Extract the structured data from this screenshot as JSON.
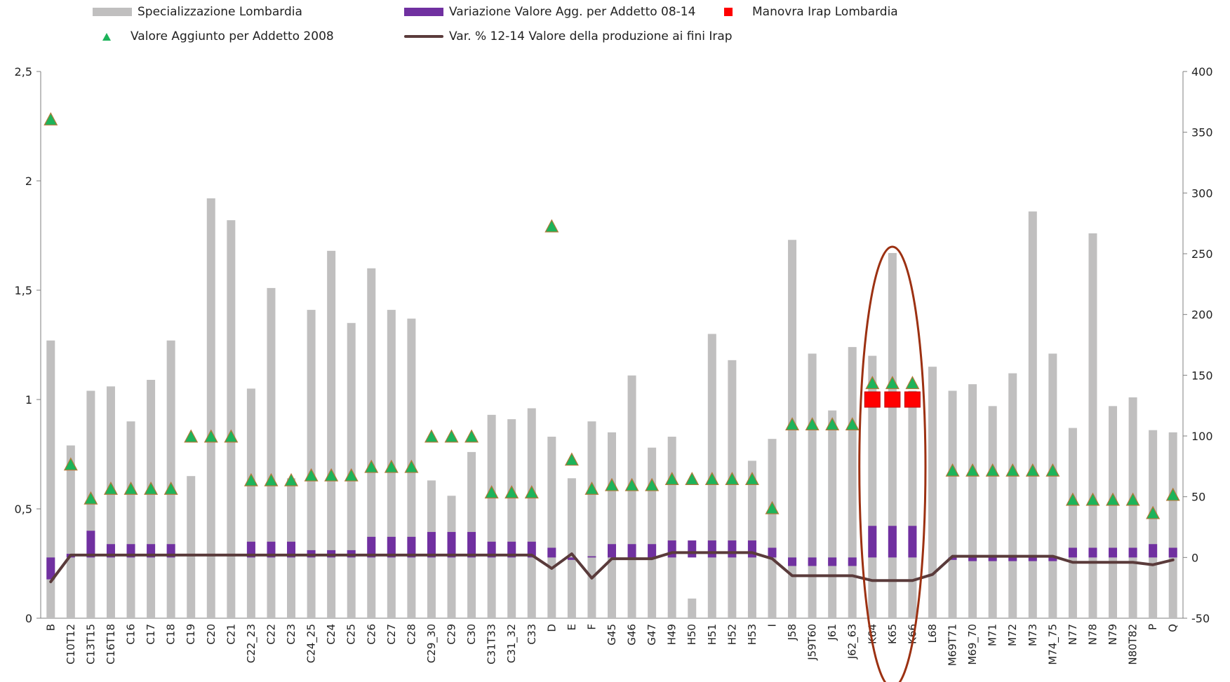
{
  "legend": {
    "specializzazione": "Specializzazione   Lombardia",
    "variazione": "Variazione Valore Agg. per Addetto 08-14",
    "manovra": "Manovra Irap   Lombardia",
    "valore_aggiunto": "Valore Aggiunto per Addetto 2008",
    "var_produzione": "Var. % 12-14 Valore della produzione ai fini Irap"
  },
  "chart_data": {
    "type": "bar",
    "categories": [
      "B",
      "C10T12",
      "C13T15",
      "C16T18",
      "C16",
      "C17",
      "C18",
      "C19",
      "C20",
      "C21",
      "C22_23",
      "C22",
      "C23",
      "C24_25",
      "C24",
      "C25",
      "C26",
      "C27",
      "C28",
      "C29_30",
      "C29",
      "C30",
      "C31T33",
      "C31_32",
      "C33",
      "D",
      "E",
      "F",
      "G45",
      "G46",
      "G47",
      "H49",
      "H50",
      "H51",
      "H52",
      "H53",
      "I",
      "J58",
      "J59T60",
      "J61",
      "J62_63",
      "K64",
      "K65",
      "K66",
      "L68",
      "M69T71",
      "M69_70",
      "M71",
      "M72",
      "M73",
      "M74_75",
      "N77",
      "N78",
      "N79",
      "N80T82",
      "P",
      "Q"
    ],
    "left_axis": {
      "min": 0,
      "max": 2.5,
      "ticks": [
        "0",
        "0,5",
        "1",
        "1,5",
        "2",
        "2,5"
      ],
      "tick_values": [
        0,
        0.5,
        1,
        1.5,
        2,
        2.5
      ]
    },
    "right_axis": {
      "min": -50,
      "max": 400,
      "ticks": [
        "-50",
        "0",
        "50",
        "100",
        "150",
        "200",
        "250",
        "300",
        "350",
        "400"
      ],
      "tick_values": [
        -50,
        0,
        50,
        100,
        150,
        200,
        250,
        300,
        350,
        400
      ]
    },
    "series": [
      {
        "name": "Specializzazione   Lombardia",
        "type": "bar",
        "axis": "left",
        "color": "#c0bfbf",
        "values": [
          1.27,
          0.79,
          1.04,
          1.06,
          0.9,
          1.09,
          1.27,
          0.65,
          1.92,
          1.82,
          1.05,
          1.51,
          0.64,
          1.41,
          1.68,
          1.35,
          1.6,
          1.41,
          1.37,
          0.63,
          0.56,
          0.76,
          0.93,
          0.91,
          0.96,
          0.83,
          0.64,
          0.9,
          0.85,
          1.11,
          0.78,
          0.83,
          0.09,
          1.3,
          1.18,
          0.72,
          0.82,
          1.73,
          1.21,
          0.95,
          1.24,
          1.2,
          1.67,
          1.04,
          1.15,
          1.04,
          1.07,
          0.97,
          1.12,
          1.86,
          1.21,
          0.87,
          1.76,
          0.97,
          1.01,
          0.86,
          0.85
        ]
      },
      {
        "name": "Variazione Valore Agg. per Addetto 08-14",
        "type": "bar",
        "axis": "right",
        "color": "#7030a0",
        "values": [
          -18,
          3,
          22,
          11,
          11,
          11,
          11,
          0,
          0,
          0,
          13,
          13,
          13,
          6,
          6,
          6,
          17,
          17,
          17,
          21,
          21,
          21,
          13,
          13,
          13,
          8,
          -2,
          1,
          11,
          11,
          11,
          14,
          14,
          14,
          14,
          14,
          8,
          -7,
          -7,
          -7,
          -7,
          26,
          26,
          26,
          0,
          -2,
          -3,
          -3,
          -3,
          -3,
          -3,
          8,
          8,
          8,
          8,
          11,
          8
        ]
      },
      {
        "name": "Valore Aggiunto per Addetto 2008",
        "type": "scatter",
        "axis": "right",
        "color": "#1db35a",
        "values": [
          360,
          76,
          48,
          56,
          56,
          56,
          56,
          99,
          99,
          99,
          63,
          63,
          63,
          67,
          67,
          67,
          74,
          74,
          74,
          99,
          99,
          99,
          53,
          53,
          53,
          272,
          80,
          56,
          59,
          59,
          59,
          64,
          64,
          64,
          64,
          64,
          40,
          109,
          109,
          109,
          109,
          143,
          143,
          143,
          null,
          71,
          71,
          71,
          71,
          71,
          71,
          47,
          47,
          47,
          47,
          36,
          51
        ]
      },
      {
        "name": "Manovra Irap   Lombardia",
        "type": "scatter",
        "axis": "right",
        "color": "#ff0000",
        "values": [
          null,
          null,
          null,
          null,
          null,
          null,
          null,
          null,
          null,
          null,
          null,
          null,
          null,
          null,
          null,
          null,
          null,
          null,
          null,
          null,
          null,
          null,
          null,
          null,
          null,
          null,
          null,
          null,
          null,
          null,
          null,
          null,
          null,
          null,
          null,
          null,
          null,
          null,
          null,
          null,
          null,
          130,
          130,
          130,
          null,
          null,
          null,
          null,
          null,
          null,
          null,
          null,
          null,
          null,
          null,
          null,
          null
        ]
      },
      {
        "name": "Var. % 12-14 Valore della produzione ai fini Irap",
        "type": "line",
        "axis": "right",
        "color": "#5a3b3b",
        "values": [
          -20,
          2,
          2,
          2,
          2,
          2,
          2,
          2,
          2,
          2,
          2,
          2,
          2,
          2,
          2,
          2,
          2,
          2,
          2,
          2,
          2,
          2,
          2,
          2,
          2,
          -9,
          3,
          -17,
          -1,
          -1,
          -1,
          4,
          4,
          4,
          4,
          4,
          -1,
          -15,
          -15,
          -15,
          -15,
          -19,
          -19,
          -19,
          -14,
          1,
          1,
          1,
          1,
          1,
          1,
          -4,
          -4,
          -4,
          -4,
          -6,
          -2
        ]
      }
    ],
    "annotation": "ellipse around K64, K65, K66",
    "grid": false,
    "legend_position": "top"
  }
}
